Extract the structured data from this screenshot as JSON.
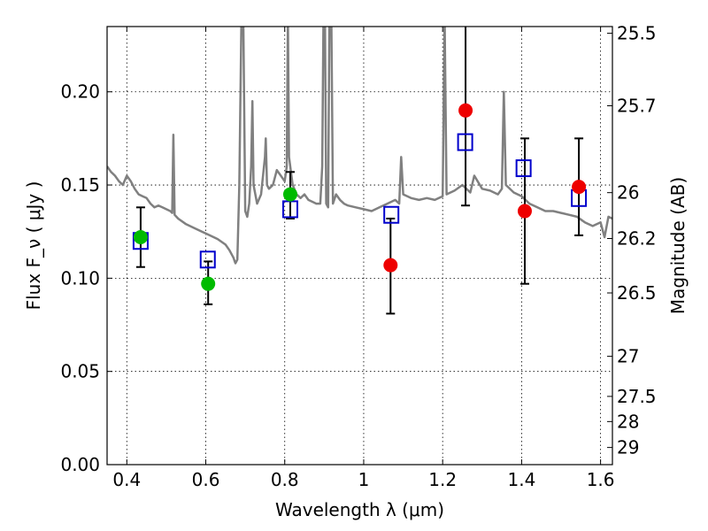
{
  "chart_data": {
    "type": "scatter",
    "xlabel": "Wavelength  λ (μm)",
    "ylabel": "Flux  F_ν  ( μJy )",
    "ylabel_right": "Magnitude (AB)",
    "xlim": [
      0.35,
      1.63
    ],
    "ylim": [
      0.0,
      0.235
    ],
    "grid": true,
    "x_ticks": [
      0.4,
      0.6,
      0.8,
      1.0,
      1.2,
      1.4,
      1.6
    ],
    "x_tick_labels": [
      "0.4",
      "0.6",
      "0.8",
      "1",
      "1.2",
      "1.4",
      "1.6"
    ],
    "y_ticks": [
      0.0,
      0.05,
      0.1,
      0.15,
      0.2
    ],
    "y_tick_labels": [
      "0.00",
      "0.05",
      "0.10",
      "0.15",
      "0.20"
    ],
    "right_ticks": [
      {
        "label": "25.5",
        "flux": 0.2314
      },
      {
        "label": "25.7",
        "flux": 0.1925
      },
      {
        "label": "26",
        "flux": 0.1459
      },
      {
        "label": "26.2",
        "flux": 0.1213
      },
      {
        "label": "26.5",
        "flux": 0.0921
      },
      {
        "label": "27",
        "flux": 0.0581
      },
      {
        "label": "27.5",
        "flux": 0.0366
      },
      {
        "label": "28",
        "flux": 0.0231
      },
      {
        "label": "29",
        "flux": 0.0092
      }
    ],
    "series": [
      {
        "marker": "square-open",
        "color": "#0000cc",
        "points": [
          {
            "x": 0.435,
            "y": 0.12
          },
          {
            "x": 0.605,
            "y": 0.11
          },
          {
            "x": 0.814,
            "y": 0.137
          },
          {
            "x": 1.07,
            "y": 0.134
          },
          {
            "x": 1.257,
            "y": 0.173
          },
          {
            "x": 1.405,
            "y": 0.159
          },
          {
            "x": 1.545,
            "y": 0.143
          }
        ]
      },
      {
        "marker": "circle",
        "color": "#00bb00",
        "points": [
          {
            "x": 0.435,
            "y": 0.122,
            "err_low": 0.106,
            "err_high": 0.138
          },
          {
            "x": 0.606,
            "y": 0.097,
            "err_low": 0.086,
            "err_high": 0.109
          },
          {
            "x": 0.814,
            "y": 0.145,
            "err_low": 0.132,
            "err_high": 0.157
          }
        ]
      },
      {
        "marker": "circle",
        "color": "#ee0000",
        "points": [
          {
            "x": 1.068,
            "y": 0.107,
            "err_low": 0.081,
            "err_high": 0.132
          },
          {
            "x": 1.258,
            "y": 0.19,
            "err_low": 0.139,
            "err_high": 0.245
          },
          {
            "x": 1.408,
            "y": 0.136,
            "err_low": 0.097,
            "err_high": 0.175
          },
          {
            "x": 1.545,
            "y": 0.149,
            "err_low": 0.123,
            "err_high": 0.175
          }
        ]
      },
      {
        "type": "line",
        "color": "#808080",
        "points": [
          [
            0.35,
            0.16
          ],
          [
            0.36,
            0.157
          ],
          [
            0.37,
            0.155
          ],
          [
            0.38,
            0.152
          ],
          [
            0.39,
            0.15
          ],
          [
            0.4,
            0.155
          ],
          [
            0.41,
            0.152
          ],
          [
            0.42,
            0.148
          ],
          [
            0.43,
            0.145
          ],
          [
            0.44,
            0.144
          ],
          [
            0.45,
            0.143
          ],
          [
            0.46,
            0.14
          ],
          [
            0.47,
            0.138
          ],
          [
            0.48,
            0.139
          ],
          [
            0.49,
            0.138
          ],
          [
            0.5,
            0.137
          ],
          [
            0.51,
            0.136
          ],
          [
            0.515,
            0.135
          ],
          [
            0.518,
            0.177
          ],
          [
            0.521,
            0.134
          ],
          [
            0.53,
            0.132
          ],
          [
            0.55,
            0.129
          ],
          [
            0.57,
            0.127
          ],
          [
            0.59,
            0.125
          ],
          [
            0.61,
            0.123
          ],
          [
            0.63,
            0.121
          ],
          [
            0.65,
            0.118
          ],
          [
            0.66,
            0.115
          ],
          [
            0.67,
            0.111
          ],
          [
            0.675,
            0.108
          ],
          [
            0.68,
            0.11
          ],
          [
            0.685,
            0.15
          ],
          [
            0.69,
            0.235
          ],
          [
            0.695,
            0.24
          ],
          [
            0.7,
            0.136
          ],
          [
            0.705,
            0.133
          ],
          [
            0.71,
            0.14
          ],
          [
            0.715,
            0.16
          ],
          [
            0.718,
            0.195
          ],
          [
            0.721,
            0.15
          ],
          [
            0.73,
            0.14
          ],
          [
            0.74,
            0.145
          ],
          [
            0.75,
            0.165
          ],
          [
            0.752,
            0.175
          ],
          [
            0.755,
            0.15
          ],
          [
            0.76,
            0.148
          ],
          [
            0.77,
            0.15
          ],
          [
            0.78,
            0.158
          ],
          [
            0.79,
            0.155
          ],
          [
            0.8,
            0.152
          ],
          [
            0.805,
            0.16
          ],
          [
            0.808,
            0.24
          ],
          [
            0.811,
            0.165
          ],
          [
            0.82,
            0.15
          ],
          [
            0.83,
            0.145
          ],
          [
            0.84,
            0.143
          ],
          [
            0.85,
            0.145
          ],
          [
            0.86,
            0.142
          ],
          [
            0.87,
            0.141
          ],
          [
            0.88,
            0.14
          ],
          [
            0.89,
            0.14
          ],
          [
            0.895,
            0.16
          ],
          [
            0.898,
            0.24
          ],
          [
            0.902,
            0.24
          ],
          [
            0.905,
            0.14
          ],
          [
            0.91,
            0.138
          ],
          [
            0.913,
            0.24
          ],
          [
            0.918,
            0.24
          ],
          [
            0.922,
            0.14
          ],
          [
            0.93,
            0.145
          ],
          [
            0.94,
            0.142
          ],
          [
            0.95,
            0.14
          ],
          [
            0.96,
            0.139
          ],
          [
            0.98,
            0.138
          ],
          [
            1.0,
            0.137
          ],
          [
            1.02,
            0.136
          ],
          [
            1.04,
            0.138
          ],
          [
            1.06,
            0.14
          ],
          [
            1.08,
            0.142
          ],
          [
            1.09,
            0.14
          ],
          [
            1.095,
            0.165
          ],
          [
            1.1,
            0.145
          ],
          [
            1.12,
            0.143
          ],
          [
            1.14,
            0.142
          ],
          [
            1.16,
            0.143
          ],
          [
            1.18,
            0.142
          ],
          [
            1.2,
            0.144
          ],
          [
            1.205,
            0.24
          ],
          [
            1.21,
            0.145
          ],
          [
            1.23,
            0.147
          ],
          [
            1.25,
            0.15
          ],
          [
            1.27,
            0.146
          ],
          [
            1.28,
            0.155
          ],
          [
            1.3,
            0.148
          ],
          [
            1.32,
            0.147
          ],
          [
            1.34,
            0.145
          ],
          [
            1.35,
            0.148
          ],
          [
            1.355,
            0.2
          ],
          [
            1.36,
            0.15
          ],
          [
            1.38,
            0.146
          ],
          [
            1.4,
            0.144
          ],
          [
            1.42,
            0.14
          ],
          [
            1.44,
            0.138
          ],
          [
            1.46,
            0.136
          ],
          [
            1.48,
            0.136
          ],
          [
            1.5,
            0.135
          ],
          [
            1.52,
            0.134
          ],
          [
            1.54,
            0.133
          ],
          [
            1.56,
            0.13
          ],
          [
            1.58,
            0.128
          ],
          [
            1.6,
            0.13
          ],
          [
            1.61,
            0.122
          ],
          [
            1.62,
            0.133
          ],
          [
            1.63,
            0.132
          ]
        ]
      }
    ]
  }
}
